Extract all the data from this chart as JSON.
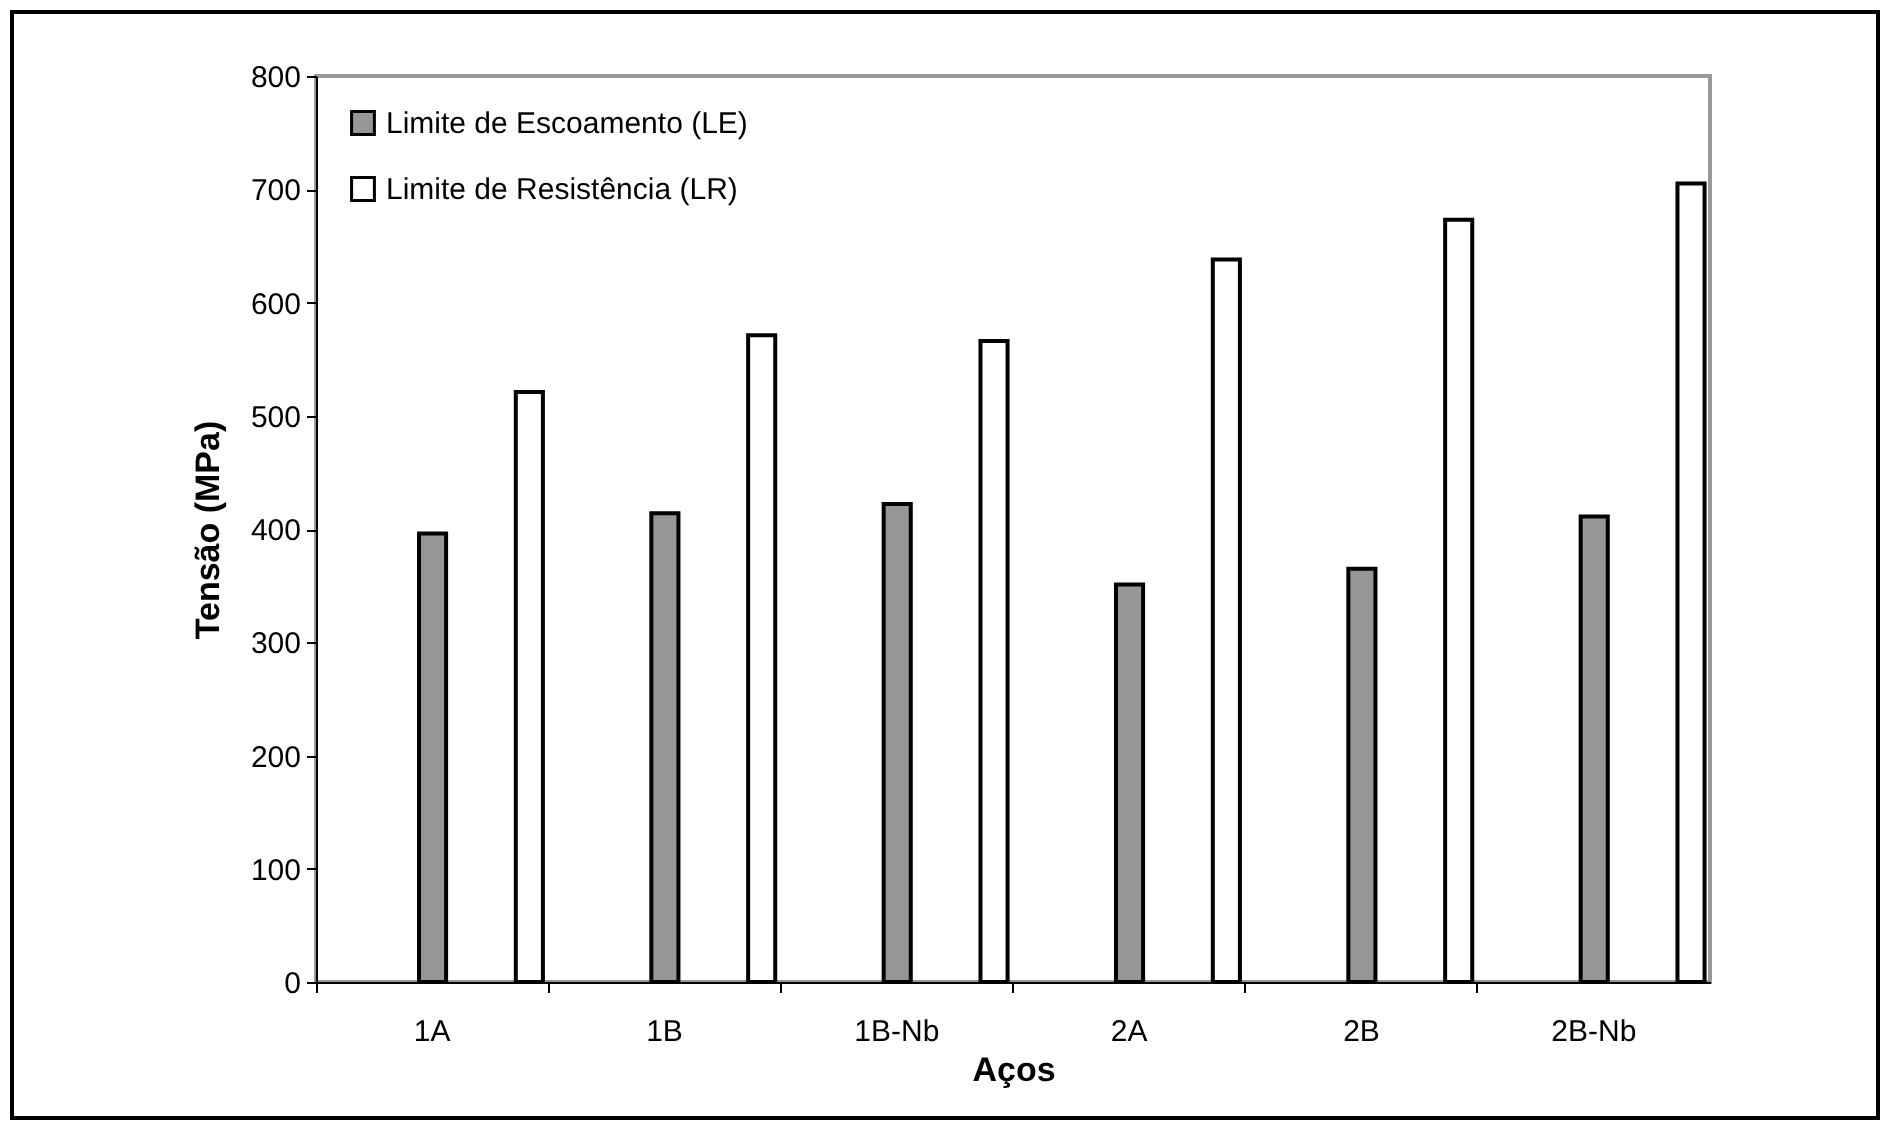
{
  "chart_data": {
    "type": "bar",
    "xlabel": "Aços",
    "ylabel": "Tensão (MPa)",
    "categories": [
      "1A",
      "1B",
      "1B-Nb",
      "2A",
      "2B",
      "2B-Nb"
    ],
    "series": [
      {
        "name": "Limite de Escoamento (LE)",
        "color": "#969696",
        "values": [
          396,
          414,
          422,
          351,
          365,
          411
        ]
      },
      {
        "name": "Limite de Resistência (LR)",
        "color": "#ffffff",
        "values": [
          521,
          571,
          566,
          638,
          673,
          705
        ]
      }
    ],
    "ylim": [
      0,
      800
    ],
    "yticks": [
      0,
      100,
      200,
      300,
      400,
      500,
      600,
      700,
      800
    ],
    "grid": false,
    "legend": "top left"
  }
}
